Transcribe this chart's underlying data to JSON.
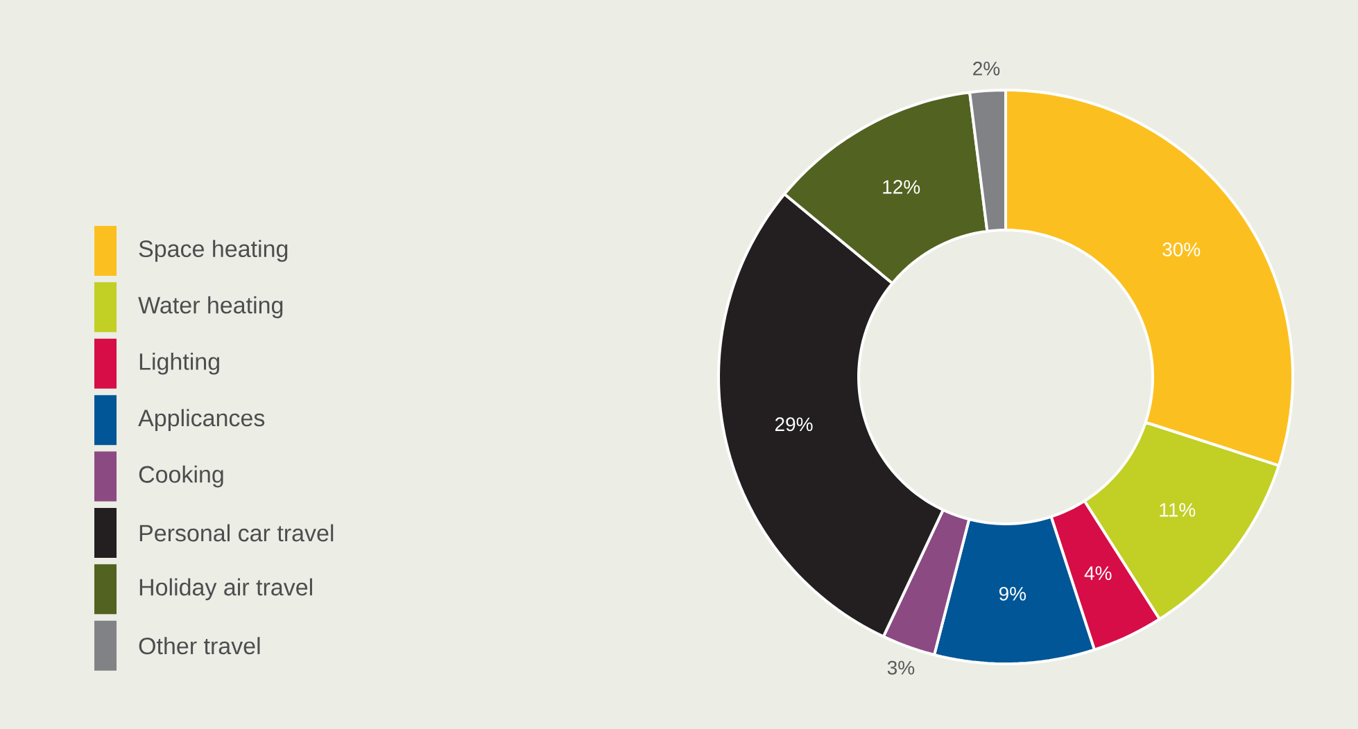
{
  "chart_data": {
    "type": "donut",
    "categories": [
      "Space heating",
      "Water heating",
      "Lighting",
      "Applicances",
      "Cooking",
      "Personal car travel",
      "Holiday air travel",
      "Other travel"
    ],
    "values": [
      30,
      11,
      4,
      9,
      3,
      29,
      12,
      2
    ],
    "colors": [
      "#fbc020",
      "#c2cf24",
      "#d60d47",
      "#005696",
      "#8b4a82",
      "#231f20",
      "#526221",
      "#808285"
    ],
    "value_labels": [
      "30%",
      "11%",
      "4%",
      "9%",
      "3%",
      "29%",
      "12%",
      "2%"
    ],
    "legend": "left"
  }
}
